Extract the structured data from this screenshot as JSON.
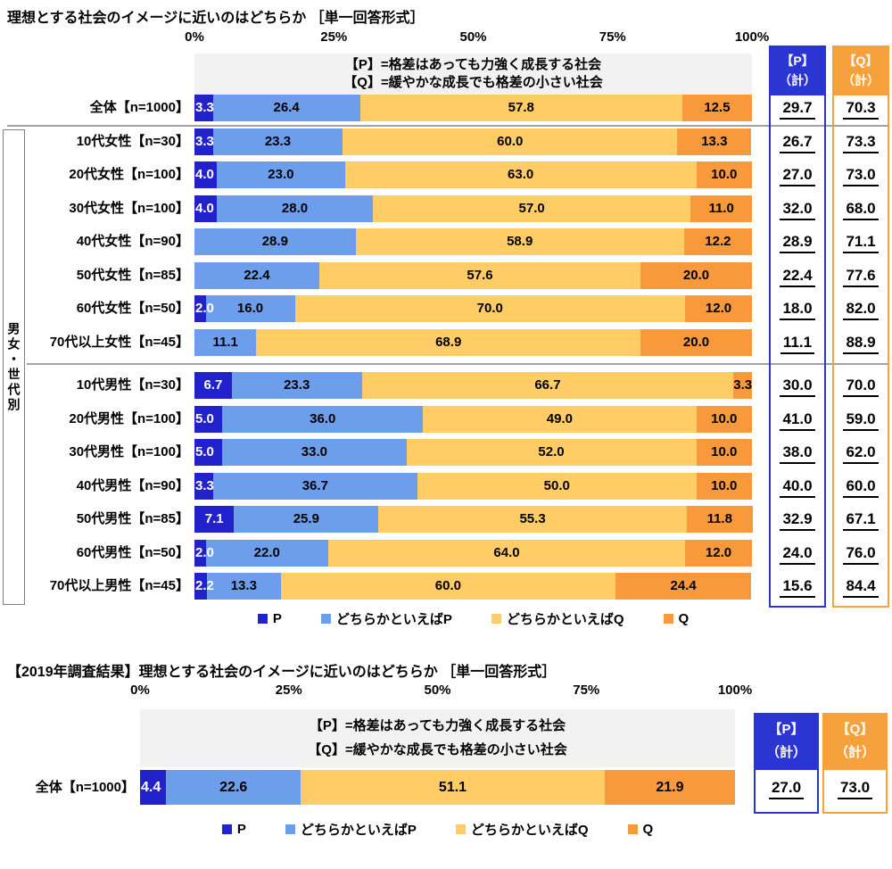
{
  "colors": {
    "p": "#2222CC",
    "p2": "#6D9EEB",
    "q2": "#FFCC66",
    "q": "#F8993B",
    "p_head": "#2A35D2",
    "q_head": "#F7A13C",
    "p_border": "#2A35D2",
    "q_border": "#F7A13C",
    "band": "#F2F2F2",
    "separator": "#A0A0A0"
  },
  "legend": [
    {
      "key": "p",
      "label": "P"
    },
    {
      "key": "p2",
      "label": "どちらかといえばP"
    },
    {
      "key": "q2",
      "label": "どちらかといえばQ"
    },
    {
      "key": "q",
      "label": "Q"
    }
  ],
  "p_header_lines": [
    "【P】",
    "（計）"
  ],
  "q_header_lines": [
    "【Q】",
    "（計）"
  ],
  "top_chart": {
    "title": "理想とする社会のイメージに近いのはどちらか ［単一回答形式］",
    "note_lines": [
      "【P】=格差はあっても力強く成長する社会",
      "【Q】=緩やかな成長でも格差の小さい社会"
    ],
    "group_label": "男女・世代別"
  },
  "bottom_chart": {
    "title": "【2019年調査結果】理想とする社会のイメージに近いのはどちらか ［単一回答形式］",
    "note_lines": [
      "【P】=格差はあっても力強く成長する社会",
      "【Q】=緩やかな成長でも格差の小さい社会"
    ]
  },
  "chart_data": [
    {
      "type": "bar",
      "stacked": true,
      "orientation": "horizontal",
      "title": "理想とする社会のイメージに近いのはどちらか ［単一回答形式］",
      "xlim": [
        0,
        100
      ],
      "x_ticks": [
        "0%",
        "25%",
        "50%",
        "75%",
        "100%"
      ],
      "categories": [
        "全体【n=1000】",
        "10代女性【n=30】",
        "20代女性【n=100】",
        "30代女性【n=100】",
        "40代女性【n=90】",
        "50代女性【n=85】",
        "60代女性【n=50】",
        "70代以上女性【n=45】",
        "10代男性【n=30】",
        "20代男性【n=100】",
        "30代男性【n=100】",
        "40代男性【n=90】",
        "50代男性【n=85】",
        "60代男性【n=50】",
        "70代以上男性【n=45】"
      ],
      "series": [
        {
          "name": "P",
          "values": [
            3.3,
            3.3,
            4.0,
            4.0,
            0,
            0,
            2.0,
            0,
            6.7,
            5.0,
            5.0,
            3.3,
            7.1,
            2.0,
            2.2
          ]
        },
        {
          "name": "どちらかといえばP",
          "values": [
            26.4,
            23.3,
            23.0,
            28.0,
            28.9,
            22.4,
            16.0,
            11.1,
            23.3,
            36.0,
            33.0,
            36.7,
            25.9,
            22.0,
            13.3
          ]
        },
        {
          "name": "どちらかといえばQ",
          "values": [
            57.8,
            60.0,
            63.0,
            57.0,
            58.9,
            57.6,
            70.0,
            68.9,
            66.7,
            49.0,
            52.0,
            50.0,
            55.3,
            64.0,
            60.0
          ]
        },
        {
          "name": "Q",
          "values": [
            12.5,
            13.3,
            10.0,
            11.0,
            12.2,
            20.0,
            12.0,
            20.0,
            3.3,
            10.0,
            10.0,
            10.0,
            11.8,
            12.0,
            24.4
          ]
        }
      ],
      "p_totals": [
        29.7,
        26.7,
        27.0,
        32.0,
        28.9,
        22.4,
        18.0,
        11.1,
        30.0,
        41.0,
        38.0,
        40.0,
        32.9,
        24.0,
        15.6
      ],
      "q_totals": [
        70.3,
        73.3,
        73.0,
        68.0,
        71.1,
        77.6,
        82.0,
        88.9,
        70.0,
        59.0,
        62.0,
        60.0,
        67.1,
        76.0,
        84.4
      ]
    },
    {
      "type": "bar",
      "stacked": true,
      "orientation": "horizontal",
      "title": "【2019年調査結果】理想とする社会のイメージに近いのはどちらか ［単一回答形式］",
      "xlim": [
        0,
        100
      ],
      "x_ticks": [
        "0%",
        "25%",
        "50%",
        "75%",
        "100%"
      ],
      "categories": [
        "全体【n=1000】"
      ],
      "series": [
        {
          "name": "P",
          "values": [
            4.4
          ]
        },
        {
          "name": "どちらかといえばP",
          "values": [
            22.6
          ]
        },
        {
          "name": "どちらかといえばQ",
          "values": [
            51.1
          ]
        },
        {
          "name": "Q",
          "values": [
            21.9
          ]
        }
      ],
      "p_totals": [
        27.0
      ],
      "q_totals": [
        73.0
      ]
    }
  ]
}
